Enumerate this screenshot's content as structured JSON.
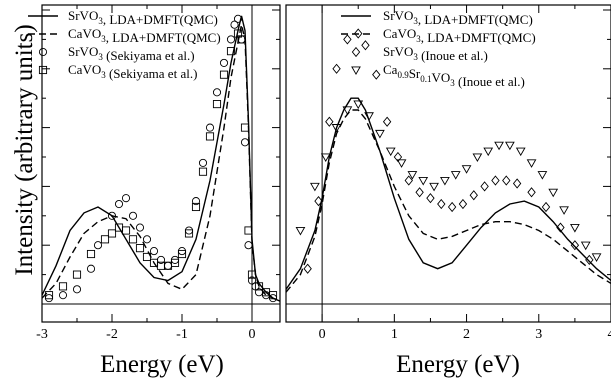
{
  "chart_data": [
    {
      "type": "scatter",
      "xlabel": "Energy (eV)",
      "ylabel": "Intensity (arbitrary units)",
      "xlim": [
        -3,
        0.4
      ],
      "ylim": [
        0,
        1.0
      ],
      "x_ticks": [
        "-3",
        "-2",
        "-1",
        "0"
      ],
      "vertical_line_at": 0,
      "legend": {
        "position": "top-left",
        "entries": [
          {
            "main": "SrVO",
            "sub": "3",
            "rest": ", LDA+DMFT(QMC)",
            "marker": "solid"
          },
          {
            "main": "CaVO",
            "sub": "3",
            "rest": ", LDA+DMFT(QMC)",
            "marker": "dashed"
          },
          {
            "main": "SrVO",
            "sub": "3",
            "rest": " (Sekiyama et al.)",
            "marker": "circle"
          },
          {
            "main": "CaVO",
            "sub": "3",
            "rest": " (Sekiyama et al.)",
            "marker": "square"
          }
        ]
      },
      "series": [
        {
          "style": "solid",
          "x": [
            -3.0,
            -2.8,
            -2.6,
            -2.4,
            -2.2,
            -2.0,
            -1.8,
            -1.6,
            -1.4,
            -1.2,
            -1.0,
            -0.8,
            -0.6,
            -0.4,
            -0.3,
            -0.2,
            -0.15,
            -0.1,
            -0.05,
            0.0,
            0.05,
            0.1,
            0.2,
            0.3,
            0.4
          ],
          "y": [
            0.03,
            0.13,
            0.25,
            0.31,
            0.33,
            0.3,
            0.22,
            0.14,
            0.09,
            0.08,
            0.11,
            0.22,
            0.42,
            0.68,
            0.82,
            0.93,
            0.98,
            0.93,
            0.62,
            0.22,
            0.1,
            0.07,
            0.04,
            0.02,
            0.01
          ]
        },
        {
          "style": "dashed",
          "x": [
            -3.0,
            -2.8,
            -2.6,
            -2.4,
            -2.2,
            -2.0,
            -1.8,
            -1.6,
            -1.4,
            -1.2,
            -1.0,
            -0.8,
            -0.6,
            -0.4,
            -0.3,
            -0.2,
            -0.15,
            -0.1,
            -0.05,
            0.0,
            0.05,
            0.1,
            0.2,
            0.3,
            0.4
          ],
          "y": [
            0.02,
            0.07,
            0.16,
            0.24,
            0.28,
            0.3,
            0.29,
            0.23,
            0.14,
            0.07,
            0.05,
            0.1,
            0.3,
            0.6,
            0.77,
            0.89,
            0.95,
            0.9,
            0.6,
            0.21,
            0.1,
            0.06,
            0.03,
            0.02,
            0.01
          ]
        },
        {
          "style": "circle",
          "x": [
            -2.9,
            -2.7,
            -2.5,
            -2.3,
            -2.2,
            -2.0,
            -1.9,
            -1.8,
            -1.7,
            -1.6,
            -1.5,
            -1.4,
            -1.3,
            -1.2,
            -1.1,
            -1.0,
            -0.9,
            -0.8,
            -0.7,
            -0.6,
            -0.5,
            -0.4,
            -0.3,
            -0.25,
            -0.2,
            -0.15,
            -0.1,
            -0.05,
            0.0,
            0.05,
            0.1,
            0.2,
            0.3
          ],
          "y": [
            0.02,
            0.03,
            0.05,
            0.12,
            0.2,
            0.3,
            0.34,
            0.36,
            0.3,
            0.26,
            0.22,
            0.18,
            0.15,
            0.13,
            0.15,
            0.18,
            0.25,
            0.35,
            0.48,
            0.6,
            0.72,
            0.82,
            0.9,
            0.95,
            0.97,
            0.9,
            0.55,
            0.2,
            0.08,
            0.06,
            0.04,
            0.03,
            0.02
          ]
        },
        {
          "style": "square",
          "x": [
            -2.9,
            -2.7,
            -2.5,
            -2.3,
            -2.1,
            -2.0,
            -1.9,
            -1.8,
            -1.7,
            -1.6,
            -1.5,
            -1.4,
            -1.3,
            -1.2,
            -1.1,
            -1.0,
            -0.9,
            -0.8,
            -0.7,
            -0.6,
            -0.5,
            -0.4,
            -0.3,
            -0.2,
            -0.15,
            -0.1,
            -0.05,
            0.0,
            0.1,
            0.2,
            0.3
          ],
          "y": [
            0.03,
            0.06,
            0.1,
            0.17,
            0.22,
            0.24,
            0.26,
            0.25,
            0.22,
            0.19,
            0.16,
            0.14,
            0.13,
            0.13,
            0.14,
            0.17,
            0.24,
            0.33,
            0.45,
            0.57,
            0.68,
            0.78,
            0.86,
            0.92,
            0.9,
            0.6,
            0.25,
            0.1,
            0.06,
            0.04,
            0.03
          ]
        }
      ]
    },
    {
      "type": "scatter",
      "xlabel": "Energy (eV)",
      "xlim": [
        -0.5,
        4
      ],
      "ylim": [
        0,
        1.0
      ],
      "x_ticks": [
        "0",
        "1",
        "2",
        "3",
        "4"
      ],
      "vertical_line_at": 0,
      "legend": {
        "position": "top-right",
        "entries": [
          {
            "main": "SrVO",
            "sub": "3",
            "rest": ", LDA+DMFT(QMC)",
            "marker": "solid"
          },
          {
            "main": "CaVO",
            "sub": "3",
            "rest": ", LDA+DMFT(QMC)",
            "marker": "dashed"
          },
          {
            "main": "SrVO",
            "sub": "3",
            "rest": " (Inoue et al.)",
            "marker": "diamond"
          },
          {
            "main": "Ca",
            "sub": "0.9",
            "main2": "Sr",
            "sub2": "0.1",
            "main3": "VO",
            "sub3": "3",
            "rest": " (Inoue et al.)",
            "marker": "triangle-down"
          }
        ]
      },
      "series": [
        {
          "style": "solid",
          "x": [
            -0.5,
            -0.3,
            -0.1,
            0.0,
            0.1,
            0.2,
            0.3,
            0.4,
            0.5,
            0.6,
            0.8,
            1.0,
            1.2,
            1.4,
            1.6,
            1.8,
            2.0,
            2.2,
            2.4,
            2.6,
            2.8,
            3.0,
            3.2,
            3.4,
            3.6,
            3.8,
            4.0
          ],
          "y": [
            0.05,
            0.12,
            0.25,
            0.36,
            0.5,
            0.6,
            0.66,
            0.7,
            0.7,
            0.66,
            0.52,
            0.36,
            0.22,
            0.14,
            0.12,
            0.14,
            0.2,
            0.26,
            0.31,
            0.34,
            0.35,
            0.33,
            0.28,
            0.22,
            0.17,
            0.12,
            0.08
          ]
        },
        {
          "style": "dashed",
          "x": [
            -0.5,
            -0.3,
            -0.1,
            0.0,
            0.1,
            0.2,
            0.3,
            0.4,
            0.5,
            0.6,
            0.8,
            1.0,
            1.2,
            1.4,
            1.6,
            1.8,
            2.0,
            2.2,
            2.4,
            2.6,
            2.8,
            3.0,
            3.2,
            3.4,
            3.6,
            3.8,
            4.0
          ],
          "y": [
            0.04,
            0.1,
            0.23,
            0.34,
            0.48,
            0.58,
            0.63,
            0.66,
            0.66,
            0.63,
            0.52,
            0.4,
            0.3,
            0.24,
            0.22,
            0.23,
            0.25,
            0.27,
            0.28,
            0.28,
            0.27,
            0.25,
            0.22,
            0.18,
            0.14,
            0.1,
            0.07
          ]
        },
        {
          "style": "diamond",
          "x": [
            -0.2,
            -0.05,
            0.1,
            0.2,
            0.35,
            0.5,
            0.6,
            0.75,
            0.9,
            1.05,
            1.2,
            1.35,
            1.5,
            1.65,
            1.8,
            1.95,
            2.1,
            2.25,
            2.4,
            2.55,
            2.7,
            2.9,
            3.1,
            3.3,
            3.5,
            3.7
          ],
          "y": [
            0.12,
            0.35,
            0.62,
            0.8,
            0.9,
            0.92,
            0.88,
            0.78,
            0.62,
            0.5,
            0.42,
            0.38,
            0.36,
            0.34,
            0.33,
            0.34,
            0.37,
            0.4,
            0.42,
            0.42,
            0.41,
            0.38,
            0.33,
            0.26,
            0.2,
            0.15
          ]
        },
        {
          "style": "triangle-down",
          "x": [
            -0.3,
            -0.1,
            0.05,
            0.2,
            0.35,
            0.5,
            0.65,
            0.8,
            0.95,
            1.1,
            1.25,
            1.4,
            1.55,
            1.7,
            1.85,
            2.0,
            2.15,
            2.3,
            2.45,
            2.6,
            2.75,
            2.9,
            3.05,
            3.2,
            3.35,
            3.5,
            3.65,
            3.8
          ],
          "y": [
            0.25,
            0.4,
            0.5,
            0.6,
            0.66,
            0.68,
            0.64,
            0.58,
            0.52,
            0.48,
            0.44,
            0.42,
            0.4,
            0.42,
            0.44,
            0.46,
            0.5,
            0.52,
            0.54,
            0.54,
            0.52,
            0.48,
            0.44,
            0.38,
            0.32,
            0.26,
            0.2,
            0.16
          ]
        }
      ]
    }
  ]
}
